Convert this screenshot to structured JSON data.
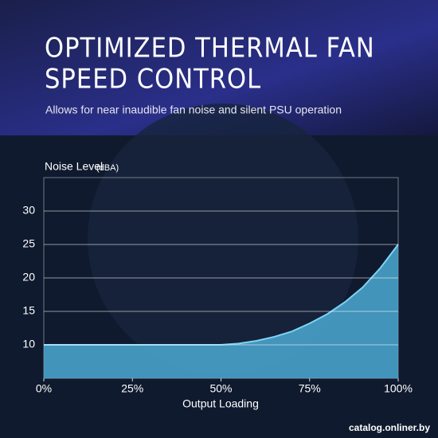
{
  "title_lines": [
    "OPTIMIZED THERMAL FAN",
    "SPEED CONTROL"
  ],
  "subtitle": "Allows for near inaudible fan noise and silent PSU operation",
  "watermark": "catalog.onliner.by",
  "chart_data": {
    "type": "area",
    "y_label": "Noise Level",
    "y_unit": "(dBA)",
    "x_label": "Output Loading",
    "x": [
      0,
      50,
      55,
      60,
      65,
      70,
      75,
      80,
      85,
      90,
      95,
      100
    ],
    "values": [
      10,
      10,
      10.2,
      10.6,
      11.2,
      12,
      13.2,
      14.6,
      16.4,
      18.6,
      21.5,
      25
    ],
    "color": "#4fb3dd",
    "xlim": [
      0,
      100
    ],
    "xticks": [
      {
        "value": 0,
        "label": "0%"
      },
      {
        "value": 25,
        "label": "25%"
      },
      {
        "value": 50,
        "label": "50%"
      },
      {
        "value": 75,
        "label": "75%"
      },
      {
        "value": 100,
        "label": "100%"
      }
    ],
    "ylim": [
      5,
      35
    ],
    "yticks": [
      10,
      15,
      20,
      25,
      30
    ],
    "grid": true
  }
}
